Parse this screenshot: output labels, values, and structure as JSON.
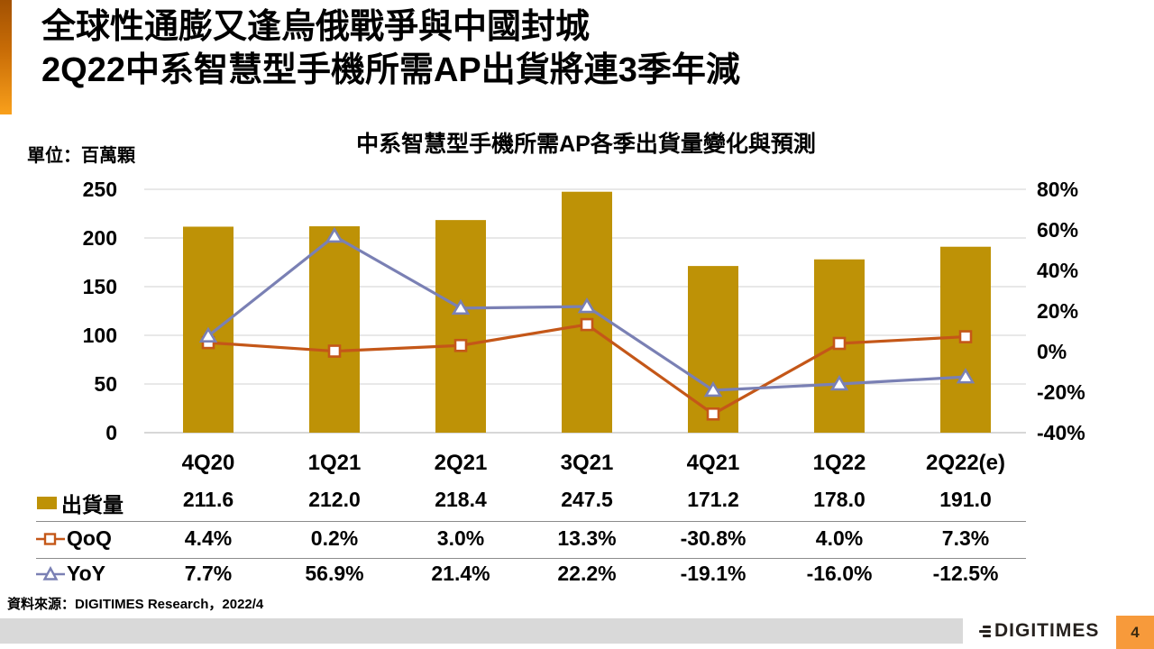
{
  "slide": {
    "title_line1": "全球性通膨又逢烏俄戰爭與中國封城",
    "title_line2": "2Q22中系智慧型手機所需AP出貨將連3季年減",
    "unit_label": "單位：百萬顆",
    "source": "資料來源：DIGITIMES Research，2022/4",
    "logo_text": "DIGITIMES",
    "page_number": "4"
  },
  "chart_data": {
    "type": "bar",
    "subtype": "bar+line combo, dual axis",
    "title": "中系智慧型手機所需AP各季出貨量變化與預測",
    "unit": "百萬顆",
    "categories": [
      "4Q20",
      "1Q21",
      "2Q21",
      "3Q21",
      "4Q21",
      "1Q22",
      "2Q22(e)"
    ],
    "series": [
      {
        "name": "出貨量",
        "type": "bar",
        "axis": "left",
        "color": "#be9206",
        "values": [
          211.6,
          212.0,
          218.4,
          247.5,
          171.2,
          178.0,
          191.0
        ]
      },
      {
        "name": "QoQ",
        "type": "line",
        "marker": "square",
        "axis": "right",
        "color": "#c45718",
        "values": [
          4.4,
          0.2,
          3.0,
          13.3,
          -30.8,
          4.0,
          7.3
        ]
      },
      {
        "name": "YoY",
        "type": "line",
        "marker": "triangle",
        "axis": "right",
        "color": "#7a80b4",
        "values": [
          7.7,
          56.9,
          21.4,
          22.2,
          -19.1,
          -16.0,
          -12.5
        ]
      }
    ],
    "left_axis": {
      "ticks": [
        "0",
        "50",
        "100",
        "150",
        "200",
        "250"
      ],
      "range": [
        0,
        250
      ]
    },
    "right_axis": {
      "ticks": [
        "-40%",
        "-20%",
        "0%",
        "20%",
        "40%",
        "60%",
        "80%"
      ],
      "range": [
        -40,
        80
      ]
    },
    "grid": true,
    "gridline_color": "#d9d9d9",
    "axisline_color": "#bfbfbf",
    "legend_position": "table rows at left"
  },
  "table": {
    "rows": [
      {
        "label": "出貨量",
        "values": [
          "211.6",
          "212.0",
          "218.4",
          "247.5",
          "171.2",
          "178.0",
          "191.0"
        ]
      },
      {
        "label": "QoQ",
        "values": [
          "4.4%",
          "0.2%",
          "3.0%",
          "13.3%",
          "-30.8%",
          "4.0%",
          "7.3%"
        ]
      },
      {
        "label": "YoY",
        "values": [
          "7.7%",
          "56.9%",
          "21.4%",
          "22.2%",
          "-19.1%",
          "-16.0%",
          "-12.5%"
        ]
      }
    ]
  }
}
